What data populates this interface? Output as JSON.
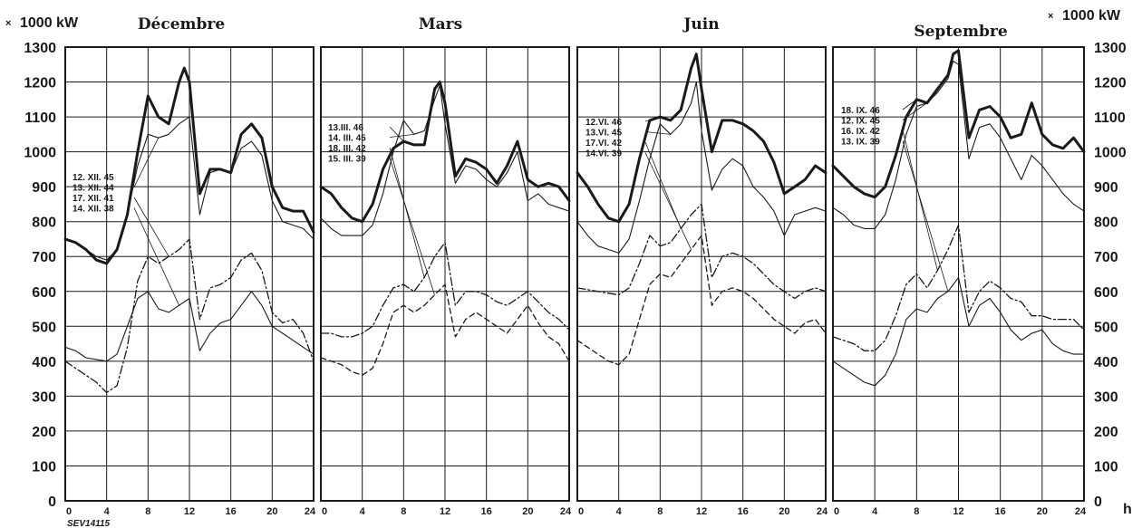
{
  "unit_left": "1000 kW",
  "unit_right": "1000 kW",
  "unit_marker": "×",
  "hour_unit": "h",
  "reference": "SEV14115",
  "y_ticks": [
    0,
    100,
    200,
    300,
    400,
    500,
    600,
    700,
    800,
    900,
    1000,
    1100,
    1200,
    1300
  ],
  "x_ticks": [
    0,
    4,
    8,
    12,
    16,
    20,
    24
  ],
  "colors": {
    "line": "#1a1a1a",
    "grid": "#1a1a1a",
    "background": "#ffffff"
  },
  "chart_data": [
    {
      "type": "line",
      "title": "Décembre",
      "xlim": [
        0,
        24
      ],
      "ylim": [
        0,
        1300
      ],
      "grid": true,
      "series": [
        {
          "name": "12. XII. 45",
          "style": "bold",
          "x": [
            0,
            1,
            2,
            3,
            4,
            5,
            6,
            7,
            8,
            9,
            10,
            11,
            11.5,
            12,
            13,
            14,
            15,
            16,
            17,
            18,
            19,
            20,
            21,
            22,
            23,
            24
          ],
          "y": [
            750,
            740,
            720,
            690,
            680,
            720,
            820,
            1000,
            1160,
            1100,
            1080,
            1200,
            1240,
            1200,
            880,
            950,
            950,
            940,
            1050,
            1080,
            1040,
            900,
            840,
            830,
            830,
            770
          ]
        },
        {
          "name": "13. XII. 44",
          "style": "thin",
          "x": [
            0,
            1,
            2,
            3,
            4,
            5,
            6,
            7,
            8,
            9,
            10,
            11,
            12,
            13,
            14,
            15,
            16,
            17,
            18,
            19,
            20,
            21,
            22,
            23,
            24
          ],
          "y": [
            750,
            740,
            720,
            700,
            690,
            720,
            820,
            960,
            1050,
            1040,
            1050,
            1080,
            1100,
            820,
            940,
            950,
            940,
            1010,
            1030,
            990,
            860,
            800,
            790,
            780,
            750
          ]
        },
        {
          "name": "17. XII. 41",
          "style": "dash-dot",
          "x": [
            0,
            1,
            2,
            3,
            4,
            5,
            6,
            7,
            8,
            9,
            10,
            11,
            12,
            13,
            14,
            15,
            16,
            17,
            18,
            19,
            20,
            21,
            22,
            23,
            24
          ],
          "y": [
            400,
            380,
            360,
            340,
            310,
            330,
            440,
            630,
            700,
            680,
            700,
            720,
            750,
            520,
            610,
            620,
            640,
            690,
            710,
            660,
            540,
            510,
            520,
            480,
            400
          ]
        },
        {
          "name": "14. XII. 38",
          "style": "thin",
          "x": [
            0,
            1,
            2,
            3,
            4,
            5,
            6,
            7,
            8,
            9,
            10,
            11,
            12,
            13,
            14,
            15,
            16,
            17,
            18,
            19,
            20,
            21,
            22,
            23,
            24
          ],
          "y": [
            440,
            430,
            410,
            405,
            400,
            420,
            500,
            580,
            600,
            550,
            540,
            560,
            580,
            430,
            480,
            510,
            520,
            560,
            600,
            560,
            500,
            480,
            460,
            440,
            420
          ]
        }
      ]
    },
    {
      "type": "line",
      "title": "Mars",
      "xlim": [
        0,
        24
      ],
      "ylim": [
        0,
        1300
      ],
      "grid": true,
      "series": [
        {
          "name": "13.III. 46",
          "style": "bold",
          "x": [
            0,
            1,
            2,
            3,
            4,
            5,
            6,
            7,
            8,
            9,
            10,
            11,
            11.5,
            12,
            13,
            14,
            15,
            16,
            17,
            18,
            19,
            20,
            21,
            22,
            23,
            24
          ],
          "y": [
            900,
            880,
            840,
            810,
            800,
            850,
            950,
            1010,
            1030,
            1020,
            1020,
            1180,
            1200,
            1140,
            930,
            980,
            970,
            950,
            910,
            960,
            1030,
            920,
            900,
            910,
            900,
            860
          ]
        },
        {
          "name": "14. III. 45",
          "style": "thin",
          "x": [
            0,
            1,
            2,
            3,
            4,
            5,
            6,
            7,
            8,
            9,
            10,
            11,
            11.5,
            12,
            13,
            14,
            15,
            16,
            17,
            18,
            19,
            20,
            21,
            22,
            23,
            24
          ],
          "y": [
            810,
            780,
            760,
            760,
            760,
            790,
            880,
            1000,
            1090,
            1050,
            1060,
            1150,
            1190,
            1080,
            910,
            960,
            950,
            920,
            900,
            940,
            1000,
            860,
            880,
            850,
            840,
            830
          ]
        },
        {
          "name": "18. III. 42",
          "style": "dash-dot",
          "x": [
            0,
            1,
            2,
            3,
            4,
            5,
            6,
            7,
            8,
            9,
            10,
            11,
            12,
            13,
            14,
            15,
            16,
            17,
            18,
            19,
            20,
            21,
            22,
            23,
            24
          ],
          "y": [
            480,
            480,
            470,
            470,
            480,
            500,
            560,
            610,
            620,
            600,
            640,
            700,
            740,
            560,
            600,
            600,
            590,
            570,
            560,
            580,
            600,
            570,
            540,
            520,
            490
          ]
        },
        {
          "name": "15. III. 39",
          "style": "dashed",
          "x": [
            0,
            1,
            2,
            3,
            4,
            5,
            6,
            7,
            8,
            9,
            10,
            11,
            12,
            13,
            14,
            15,
            16,
            17,
            18,
            19,
            20,
            21,
            22,
            23,
            24
          ],
          "y": [
            410,
            400,
            390,
            370,
            360,
            380,
            450,
            540,
            560,
            540,
            560,
            590,
            620,
            470,
            520,
            540,
            520,
            500,
            480,
            520,
            560,
            510,
            470,
            450,
            400
          ]
        }
      ]
    },
    {
      "type": "line",
      "title": "Juin",
      "xlim": [
        0,
        24
      ],
      "ylim": [
        0,
        1300
      ],
      "grid": true,
      "series": [
        {
          "name": "12.VI. 46",
          "style": "bold",
          "x": [
            0,
            1,
            2,
            3,
            4,
            5,
            6,
            7,
            8,
            9,
            10,
            11,
            11.5,
            12,
            13,
            14,
            15,
            16,
            17,
            18,
            19,
            20,
            21,
            22,
            23,
            24
          ],
          "y": [
            940,
            900,
            850,
            810,
            800,
            850,
            980,
            1090,
            1100,
            1090,
            1120,
            1240,
            1280,
            1180,
            1000,
            1090,
            1090,
            1080,
            1060,
            1030,
            970,
            880,
            900,
            920,
            960,
            940
          ]
        },
        {
          "name": "13.VI. 45",
          "style": "thin",
          "x": [
            0,
            1,
            2,
            3,
            4,
            5,
            6,
            7,
            8,
            9,
            10,
            11,
            11.5,
            12,
            13,
            14,
            15,
            16,
            17,
            18,
            19,
            20,
            21,
            22,
            23,
            24
          ],
          "y": [
            800,
            760,
            730,
            720,
            710,
            750,
            860,
            980,
            1080,
            1050,
            1080,
            1140,
            1200,
            1060,
            890,
            950,
            980,
            960,
            900,
            870,
            830,
            760,
            820,
            830,
            840,
            830
          ]
        },
        {
          "name": "17.VI. 42",
          "style": "dash-dot",
          "x": [
            0,
            1,
            2,
            3,
            4,
            5,
            6,
            7,
            8,
            9,
            10,
            11,
            12,
            13,
            14,
            15,
            16,
            17,
            18,
            19,
            20,
            21,
            22,
            23,
            24
          ],
          "y": [
            610,
            605,
            600,
            595,
            590,
            610,
            680,
            760,
            730,
            740,
            780,
            820,
            850,
            640,
            700,
            710,
            700,
            680,
            650,
            620,
            600,
            580,
            600,
            610,
            600
          ]
        },
        {
          "name": "14.VI. 39",
          "style": "dashed",
          "x": [
            0,
            1,
            2,
            3,
            4,
            5,
            6,
            7,
            8,
            9,
            10,
            11,
            12,
            13,
            14,
            15,
            16,
            17,
            18,
            19,
            20,
            21,
            22,
            23,
            24
          ],
          "y": [
            460,
            440,
            420,
            400,
            390,
            420,
            520,
            620,
            650,
            640,
            680,
            720,
            760,
            560,
            600,
            610,
            600,
            580,
            550,
            520,
            500,
            480,
            510,
            520,
            480
          ]
        }
      ]
    },
    {
      "type": "line",
      "title": "Septembre",
      "xlim": [
        0,
        24
      ],
      "ylim": [
        0,
        1300
      ],
      "grid": true,
      "series": [
        {
          "name": "18. IX. 46",
          "style": "bold",
          "x": [
            0,
            1,
            2,
            3,
            4,
            5,
            6,
            7,
            8,
            9,
            10,
            11,
            11.5,
            12,
            13,
            14,
            15,
            16,
            17,
            18,
            19,
            20,
            21,
            22,
            23,
            24
          ],
          "y": [
            960,
            930,
            900,
            880,
            870,
            900,
            990,
            1100,
            1150,
            1140,
            1180,
            1220,
            1280,
            1290,
            1040,
            1120,
            1130,
            1100,
            1040,
            1050,
            1140,
            1050,
            1020,
            1010,
            1040,
            1000
          ]
        },
        {
          "name": "12. IX. 45",
          "style": "thin",
          "x": [
            0,
            1,
            2,
            3,
            4,
            5,
            6,
            7,
            8,
            9,
            10,
            11,
            11.5,
            12,
            13,
            14,
            15,
            16,
            17,
            18,
            19,
            20,
            21,
            22,
            23,
            24
          ],
          "y": [
            840,
            820,
            790,
            780,
            780,
            820,
            920,
            1050,
            1130,
            1140,
            1170,
            1210,
            1260,
            1250,
            980,
            1070,
            1080,
            1040,
            980,
            920,
            990,
            960,
            920,
            880,
            850,
            830
          ]
        },
        {
          "name": "16. IX. 42",
          "style": "dash-dot",
          "x": [
            0,
            1,
            2,
            3,
            4,
            5,
            6,
            7,
            8,
            9,
            10,
            11,
            12,
            13,
            14,
            15,
            16,
            17,
            18,
            19,
            20,
            21,
            22,
            23,
            24
          ],
          "y": [
            470,
            460,
            450,
            430,
            430,
            460,
            530,
            620,
            650,
            610,
            660,
            720,
            790,
            540,
            600,
            630,
            610,
            580,
            570,
            530,
            530,
            520,
            520,
            520,
            490
          ]
        },
        {
          "name": "13. IX. 39",
          "style": "thin",
          "x": [
            0,
            1,
            2,
            3,
            4,
            5,
            6,
            7,
            8,
            9,
            10,
            11,
            12,
            13,
            14,
            15,
            16,
            17,
            18,
            19,
            20,
            21,
            22,
            23,
            24
          ],
          "y": [
            400,
            380,
            360,
            340,
            330,
            360,
            420,
            520,
            550,
            540,
            580,
            600,
            640,
            500,
            560,
            580,
            540,
            490,
            460,
            480,
            490,
            450,
            430,
            420,
            420
          ]
        }
      ]
    }
  ]
}
